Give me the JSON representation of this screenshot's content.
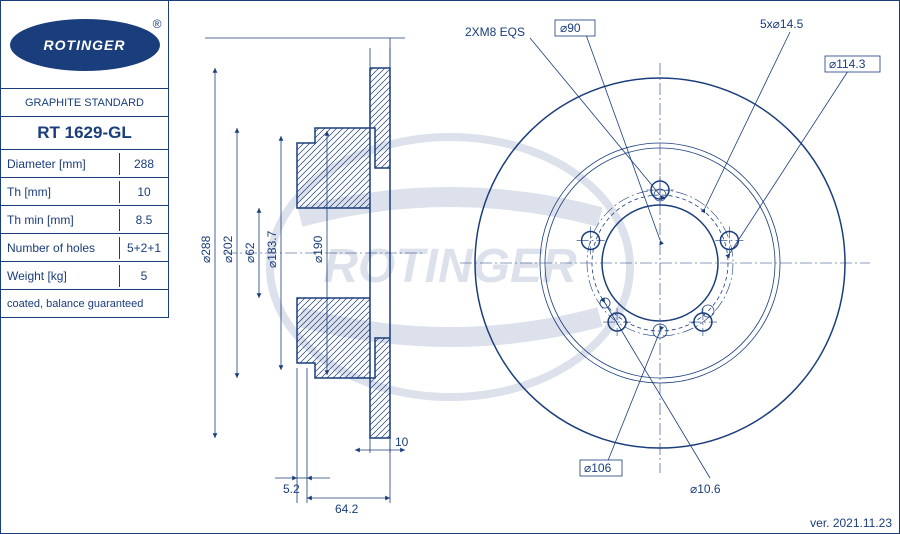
{
  "brand": "ROTINGER",
  "header": "GRAPHITE STANDARD",
  "part_number": "RT 1629-GL",
  "specs": [
    {
      "label": "Diameter [mm]",
      "value": "288"
    },
    {
      "label": "Th [mm]",
      "value": "10"
    },
    {
      "label": "Th min [mm]",
      "value": "8.5"
    },
    {
      "label": "Number of holes",
      "value": "5+2+1"
    },
    {
      "label": "Weight [kg]",
      "value": "5"
    }
  ],
  "note": "coated, balance guaranteed",
  "version": "ver. 2021.11.23",
  "side_view": {
    "diameters": [
      "⌀288",
      "⌀202",
      "⌀62",
      "⌀183.7",
      "⌀190"
    ],
    "width": "10",
    "offset1": "5.2",
    "offset2": "64.2"
  },
  "front_view": {
    "callouts": {
      "bore": "⌀90",
      "bolt_pattern": "5x⌀14.5",
      "pcd": "⌀114.3",
      "thread": "2XM8 EQS",
      "locator": "⌀106",
      "pin": "⌀10.6"
    },
    "outer_d": 288,
    "inner_ring_d": 190,
    "bore_d": 90,
    "pcd_d": 114.3,
    "bolt_d": 14.5,
    "pin_d": 10.6,
    "locator_d": 106
  },
  "colors": {
    "line": "#1a3d7c",
    "bg": "#ffffff"
  }
}
